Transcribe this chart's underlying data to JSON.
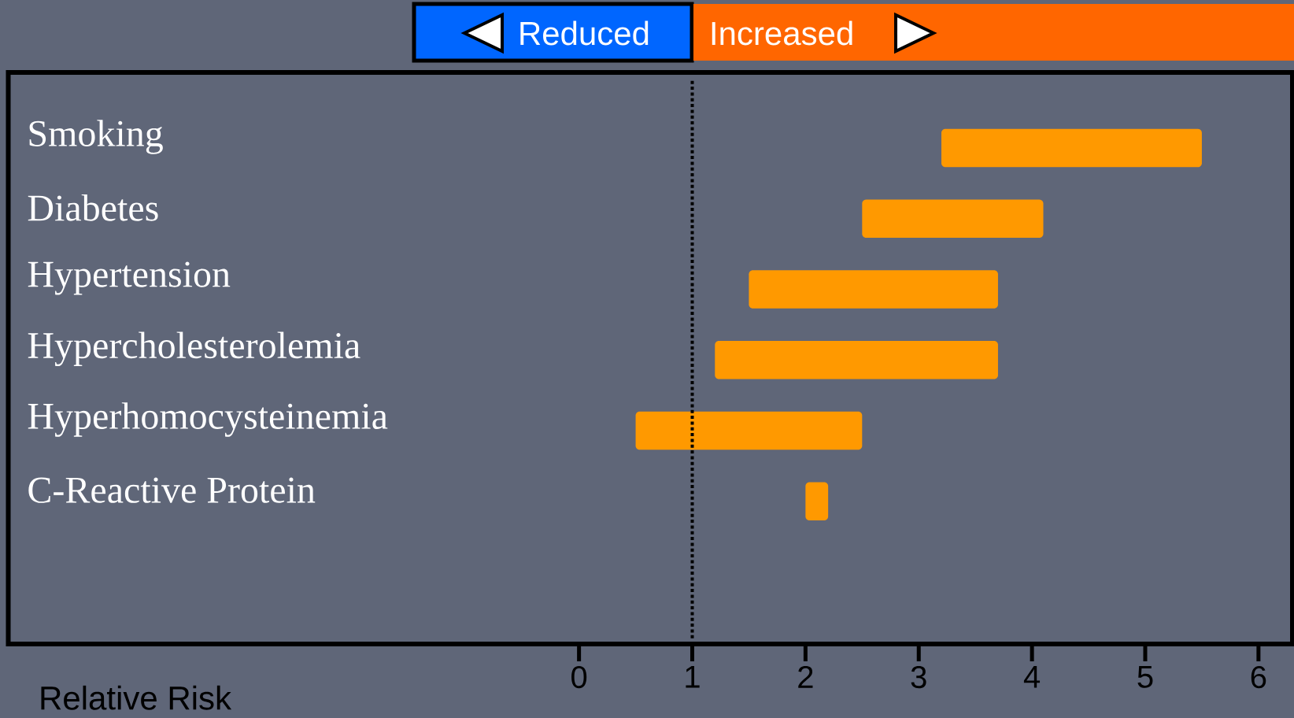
{
  "chart_data": {
    "type": "bar",
    "orientation": "horizontal",
    "xlabel": "Relative Risk",
    "categories": [
      "Smoking",
      "Diabetes",
      "Hypertension",
      "Hypercholesterolemia",
      "Hyperhomocysteinemia",
      "C-Reactive Protein"
    ],
    "base": [
      3.2,
      2.5,
      1.5,
      1.2,
      0.5,
      2.0
    ],
    "values": [
      2.3,
      1.6,
      2.2,
      2.5,
      2.0,
      0.2
    ],
    "color": "#ff9900",
    "xlim": [
      -5.04,
      6.3
    ],
    "xticks": [
      0,
      1,
      2,
      3,
      4,
      5,
      6
    ],
    "ref_lines": [
      {
        "axis": "x",
        "value": 1,
        "line_style": "dotted",
        "color": "#000000"
      }
    ],
    "annotations": [
      "Reduced",
      "Increased"
    ]
  }
}
